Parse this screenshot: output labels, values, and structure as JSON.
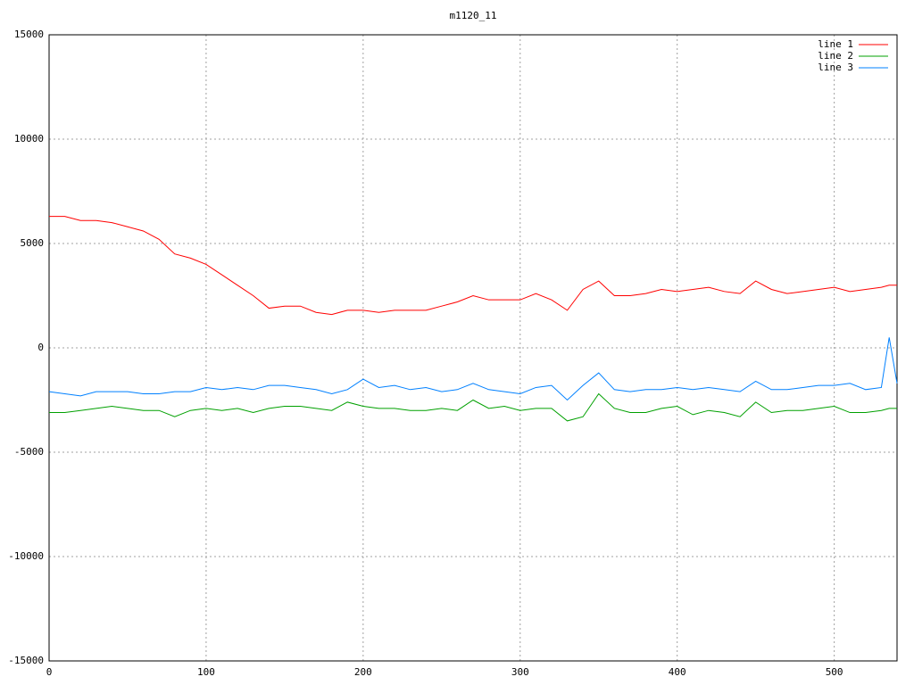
{
  "chart_data": {
    "type": "line",
    "title": "m1120_11",
    "x": [
      0,
      10,
      20,
      30,
      40,
      50,
      60,
      70,
      80,
      90,
      100,
      110,
      120,
      130,
      140,
      150,
      160,
      170,
      180,
      190,
      200,
      210,
      220,
      230,
      240,
      250,
      260,
      270,
      280,
      290,
      300,
      310,
      320,
      330,
      340,
      350,
      360,
      370,
      380,
      390,
      400,
      410,
      420,
      430,
      440,
      450,
      460,
      470,
      480,
      490,
      500,
      510,
      520,
      530,
      535,
      540
    ],
    "series": [
      {
        "name": "line 1",
        "color": "#ff0000",
        "values": [
          6300,
          6300,
          6100,
          6100,
          6000,
          5800,
          5600,
          5200,
          4500,
          4300,
          4000,
          3500,
          3000,
          2500,
          1900,
          2000,
          2000,
          1700,
          1600,
          1800,
          1800,
          1700,
          1800,
          1800,
          1800,
          2000,
          2200,
          2500,
          2300,
          2300,
          2300,
          2600,
          2300,
          1800,
          2800,
          3200,
          2500,
          2500,
          2600,
          2800,
          2700,
          2800,
          2900,
          2700,
          2600,
          3200,
          2800,
          2600,
          2700,
          2800,
          2900,
          2700,
          2800,
          2900,
          3000,
          3000
        ]
      },
      {
        "name": "line 2",
        "color": "#00a000",
        "values": [
          -3100,
          -3100,
          -3000,
          -2900,
          -2800,
          -2900,
          -3000,
          -3000,
          -3300,
          -3000,
          -2900,
          -3000,
          -2900,
          -3100,
          -2900,
          -2800,
          -2800,
          -2900,
          -3000,
          -2600,
          -2800,
          -2900,
          -2900,
          -3000,
          -3000,
          -2900,
          -3000,
          -2500,
          -2900,
          -2800,
          -3000,
          -2900,
          -2900,
          -3500,
          -3300,
          -2200,
          -2900,
          -3100,
          -3100,
          -2900,
          -2800,
          -3200,
          -3000,
          -3100,
          -3300,
          -2600,
          -3100,
          -3000,
          -3000,
          -2900,
          -2800,
          -3100,
          -3100,
          -3000,
          -2900,
          -2900
        ]
      },
      {
        "name": "line 3",
        "color": "#0080ff",
        "values": [
          -2100,
          -2200,
          -2300,
          -2100,
          -2100,
          -2100,
          -2200,
          -2200,
          -2100,
          -2100,
          -1900,
          -2000,
          -1900,
          -2000,
          -1800,
          -1800,
          -1900,
          -2000,
          -2200,
          -2000,
          -1500,
          -1900,
          -1800,
          -2000,
          -1900,
          -2100,
          -2000,
          -1700,
          -2000,
          -2100,
          -2200,
          -1900,
          -1800,
          -2500,
          -1800,
          -1200,
          -2000,
          -2100,
          -2000,
          -2000,
          -1900,
          -2000,
          -1900,
          -2000,
          -2100,
          -1600,
          -2000,
          -2000,
          -1900,
          -1800,
          -1800,
          -1700,
          -2000,
          -1900,
          500,
          -1700
        ]
      }
    ],
    "xlim": [
      0,
      540
    ],
    "xticks": [
      0,
      100,
      200,
      300,
      400,
      500
    ],
    "ylim": [
      -15000,
      15000
    ],
    "yticks": [
      -15000,
      -10000,
      -5000,
      0,
      5000,
      10000,
      15000
    ],
    "grid": true,
    "legend": "upper-right"
  }
}
